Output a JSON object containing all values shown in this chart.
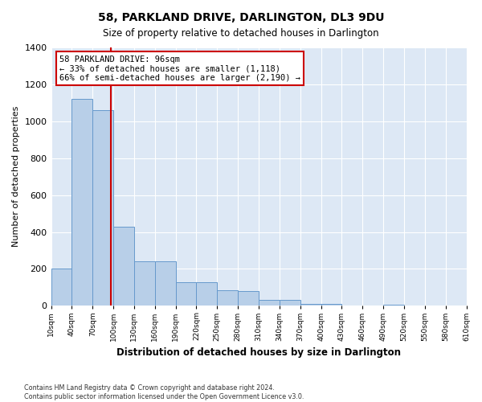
{
  "title": "58, PARKLAND DRIVE, DARLINGTON, DL3 9DU",
  "subtitle": "Size of property relative to detached houses in Darlington",
  "xlabel": "Distribution of detached houses by size in Darlington",
  "ylabel": "Number of detached properties",
  "bar_color": "#b8cfe8",
  "bar_edge_color": "#6699cc",
  "background_color": "#dde8f5",
  "grid_color": "#ffffff",
  "bins": [
    10,
    40,
    70,
    100,
    130,
    160,
    190,
    220,
    250,
    280,
    310,
    340,
    370,
    400,
    430,
    460,
    490,
    520,
    550,
    580,
    610
  ],
  "bar_heights": [
    200,
    1120,
    1060,
    430,
    240,
    240,
    130,
    130,
    85,
    80,
    30,
    30,
    10,
    10,
    0,
    0,
    5,
    0,
    0,
    0
  ],
  "tick_labels": [
    "10sqm",
    "40sqm",
    "70sqm",
    "100sqm",
    "130sqm",
    "160sqm",
    "190sqm",
    "220sqm",
    "250sqm",
    "280sqm",
    "310sqm",
    "340sqm",
    "370sqm",
    "400sqm",
    "430sqm",
    "460sqm",
    "490sqm",
    "520sqm",
    "550sqm",
    "580sqm",
    "610sqm"
  ],
  "property_size": 96,
  "annotation_text": "58 PARKLAND DRIVE: 96sqm\n← 33% of detached houses are smaller (1,118)\n66% of semi-detached houses are larger (2,190) →",
  "annotation_box_color": "#ffffff",
  "annotation_box_edge": "#cc0000",
  "red_line_color": "#cc0000",
  "ylim": [
    0,
    1400
  ],
  "yticks": [
    0,
    200,
    400,
    600,
    800,
    1000,
    1200,
    1400
  ],
  "footer_text": "Contains HM Land Registry data © Crown copyright and database right 2024.\nContains public sector information licensed under the Open Government Licence v3.0.",
  "figsize": [
    6.0,
    5.0
  ],
  "dpi": 100
}
